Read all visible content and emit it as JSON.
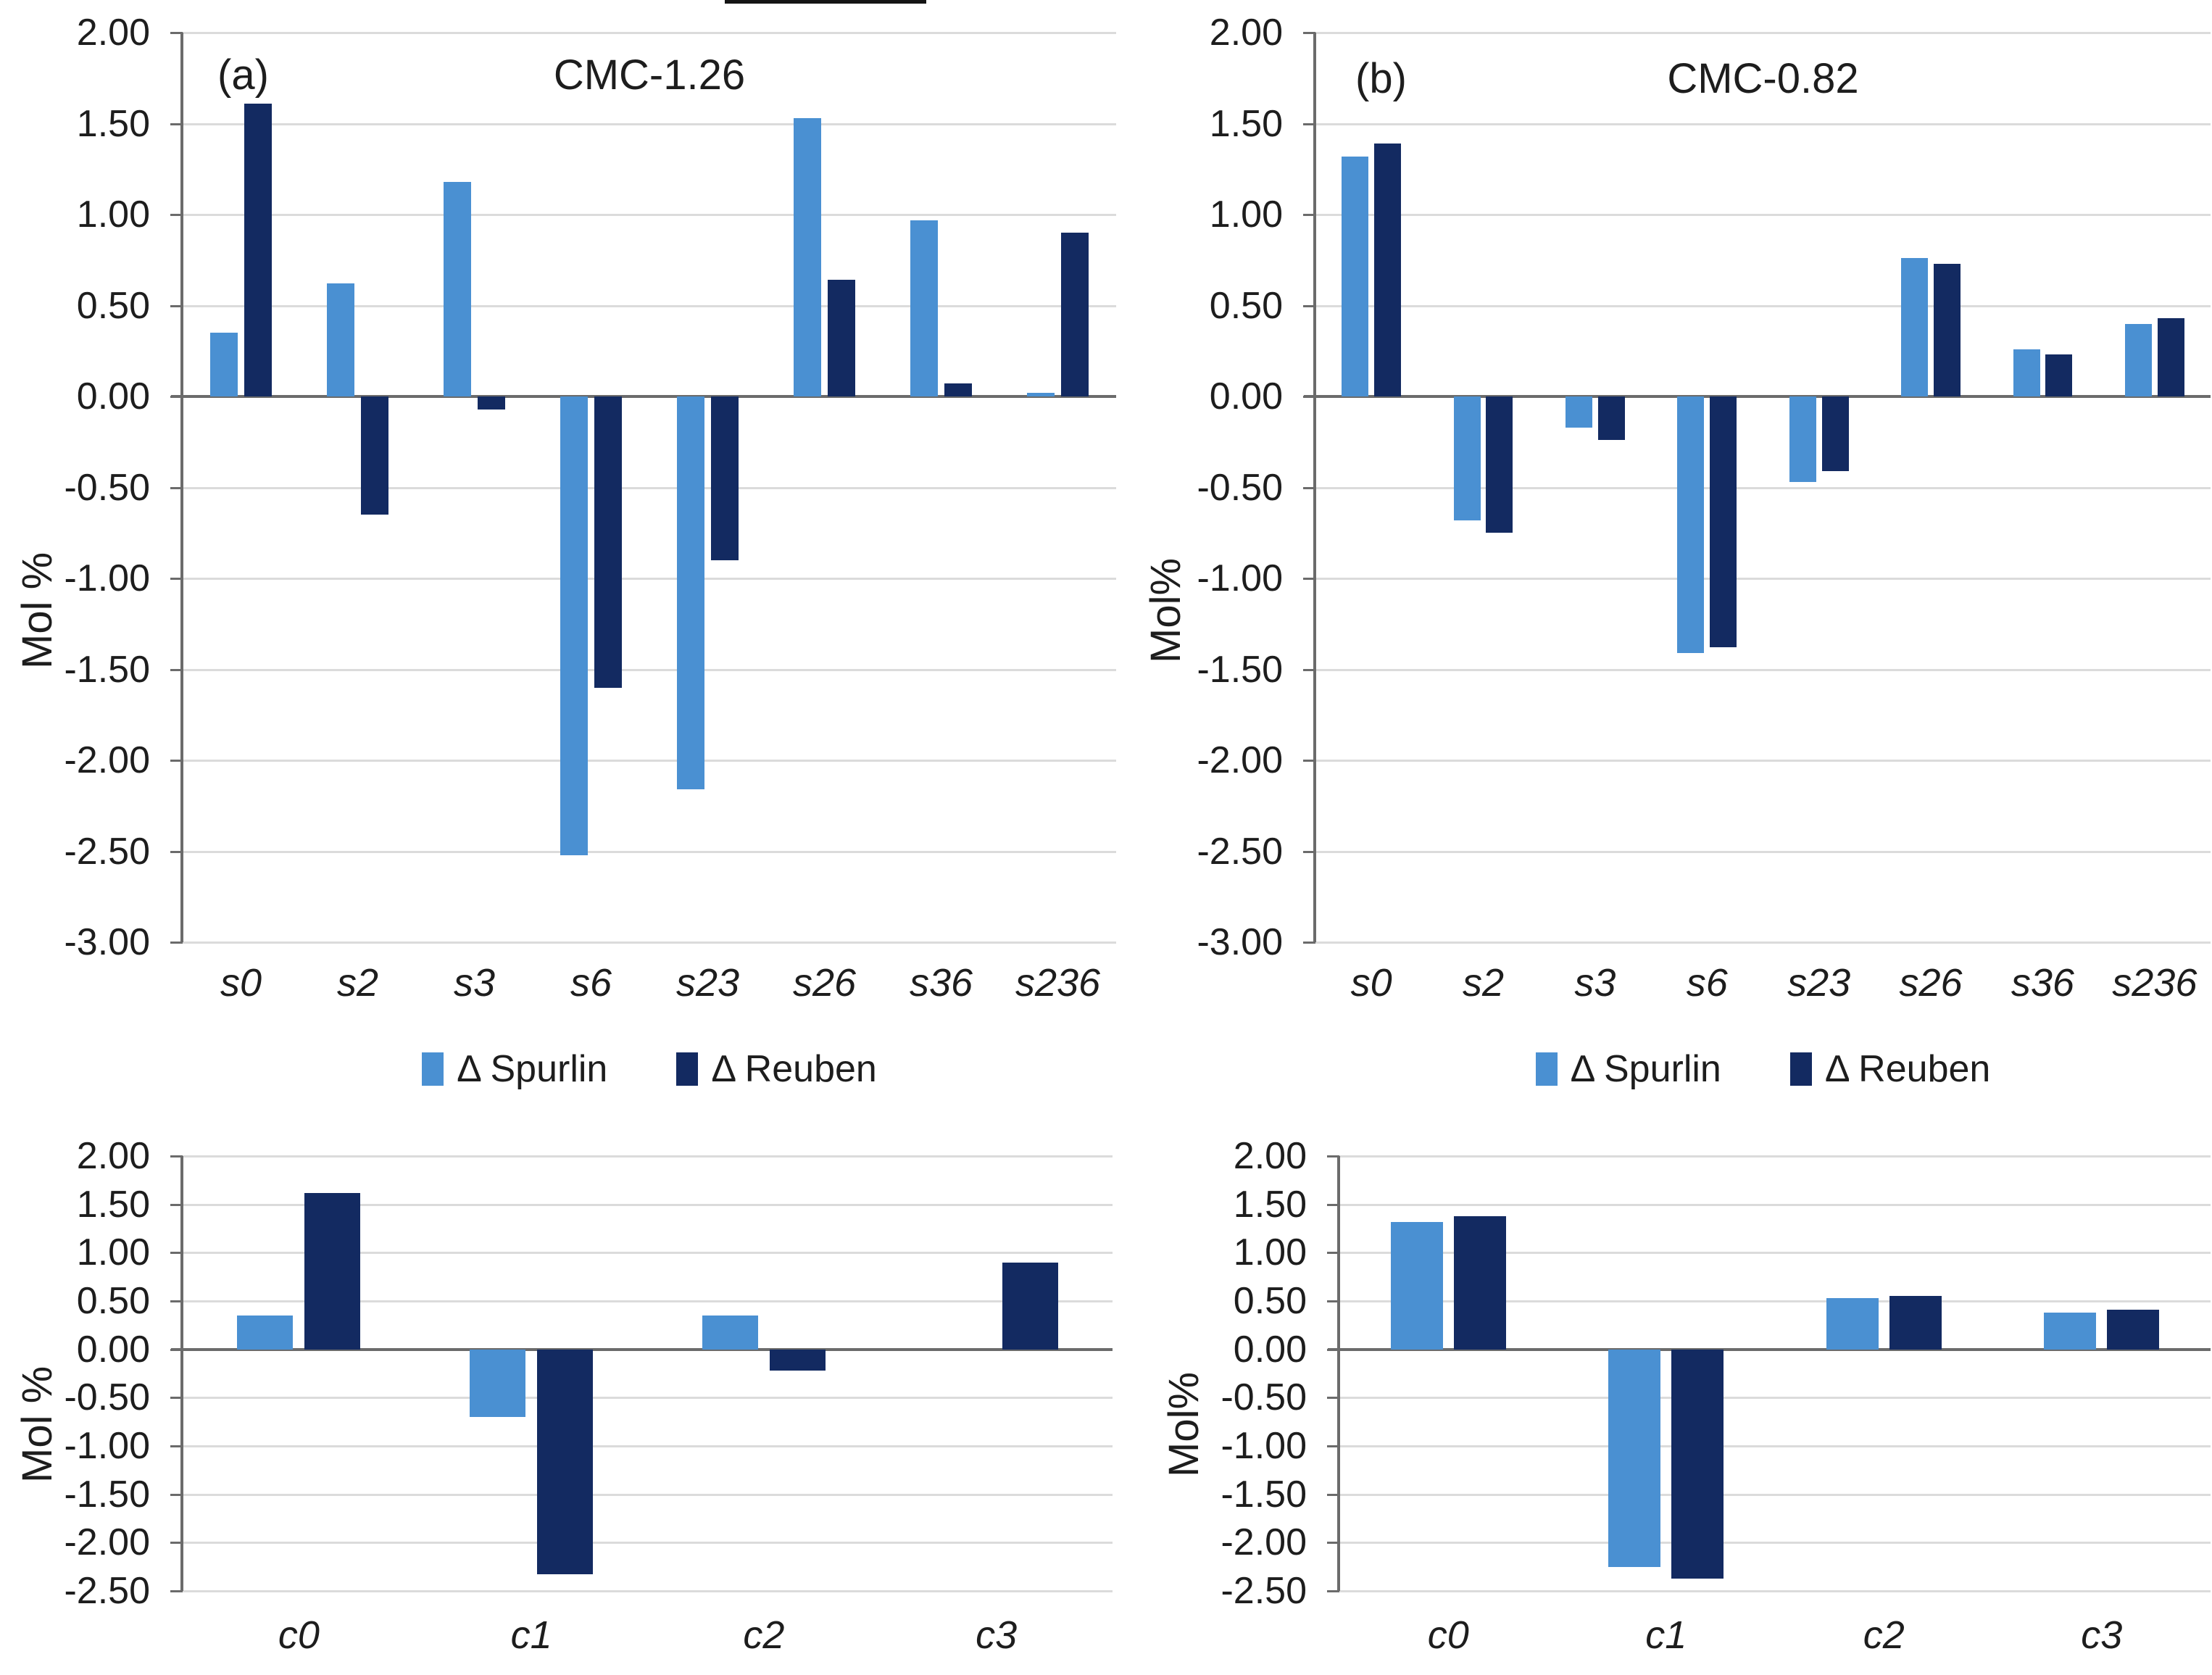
{
  "colors": {
    "spurlin": "#4a90d2",
    "reuben": "#132a61",
    "axis": "#6b6b6b",
    "gridline": "#dbdbdb",
    "text": "#1d1d1d"
  },
  "chart_data": [
    {
      "id": "a",
      "type": "bar",
      "panel_label": "(a)",
      "title": "CMC-1.26",
      "ylabel": "Mol %",
      "ylim": [
        -3.0,
        2.0
      ],
      "ytick_step": 0.5,
      "yticks": [
        "2.00",
        "1.50",
        "1.00",
        "0.50",
        "0.00",
        "-0.50",
        "-1.00",
        "-1.50",
        "-2.00",
        "-2.50",
        "-3.00"
      ],
      "grid": true,
      "legend_position": "bottom",
      "categories": [
        "s0",
        "s2",
        "s3",
        "s6",
        "s23",
        "s26",
        "s36",
        "s236"
      ],
      "series": [
        {
          "name": "Δ Spurlin",
          "key": "spurlin",
          "values": [
            0.35,
            0.62,
            1.18,
            -2.52,
            -2.16,
            1.53,
            0.97,
            0.02
          ]
        },
        {
          "name": "Δ Reuben",
          "key": "reuben",
          "values": [
            1.61,
            -0.65,
            -0.07,
            -1.6,
            -0.9,
            0.64,
            0.07,
            0.9
          ]
        }
      ]
    },
    {
      "id": "b",
      "type": "bar",
      "panel_label": "(b)",
      "title": "CMC-0.82",
      "ylabel": "Mol%",
      "ylim": [
        -3.0,
        2.0
      ],
      "ytick_step": 0.5,
      "yticks": [
        "2.00",
        "1.50",
        "1.00",
        "0.50",
        "0.00",
        "-0.50",
        "-1.00",
        "-1.50",
        "-2.00",
        "-2.50",
        "-3.00"
      ],
      "grid": true,
      "legend_position": "bottom",
      "categories": [
        "s0",
        "s2",
        "s3",
        "s6",
        "s23",
        "s26",
        "s36",
        "s236"
      ],
      "series": [
        {
          "name": "Δ Spurlin",
          "key": "spurlin",
          "values": [
            1.32,
            -0.68,
            -0.17,
            -1.41,
            -0.47,
            0.76,
            0.26,
            0.4
          ]
        },
        {
          "name": "Δ Reuben",
          "key": "reuben",
          "values": [
            1.39,
            -0.75,
            -0.24,
            -1.38,
            -0.41,
            0.73,
            0.23,
            0.43
          ]
        }
      ]
    },
    {
      "id": "c",
      "type": "bar",
      "panel_label": "",
      "title": "",
      "ylabel": "Mol %",
      "ylim": [
        -2.5,
        2.0
      ],
      "ytick_step": 0.5,
      "yticks": [
        "2.00",
        "1.50",
        "1.00",
        "0.50",
        "0.00",
        "-0.50",
        "-1.00",
        "-1.50",
        "-2.00",
        "-2.50"
      ],
      "grid": true,
      "legend_position": "none",
      "categories": [
        "c0",
        "c1",
        "c2",
        "c3"
      ],
      "series": [
        {
          "name": "Δ Spurlin",
          "key": "spurlin",
          "values": [
            0.35,
            -0.7,
            0.35,
            0.0
          ]
        },
        {
          "name": "Δ Reuben",
          "key": "reuben",
          "values": [
            1.62,
            -2.33,
            -0.22,
            0.9
          ]
        }
      ]
    },
    {
      "id": "d",
      "type": "bar",
      "panel_label": "",
      "title": "",
      "ylabel": "Mol%",
      "ylim": [
        -2.5,
        2.0
      ],
      "ytick_step": 0.5,
      "yticks": [
        "2.00",
        "1.50",
        "1.00",
        "0.50",
        "0.00",
        "-0.50",
        "-1.00",
        "-1.50",
        "-2.00",
        "-2.50"
      ],
      "grid": true,
      "legend_position": "none",
      "categories": [
        "c0",
        "c1",
        "c2",
        "c3"
      ],
      "series": [
        {
          "name": "Δ Spurlin",
          "key": "spurlin",
          "values": [
            1.32,
            -2.25,
            0.53,
            0.38
          ]
        },
        {
          "name": "Δ Reuben",
          "key": "reuben",
          "values": [
            1.38,
            -2.37,
            0.55,
            0.41
          ]
        }
      ]
    }
  ]
}
